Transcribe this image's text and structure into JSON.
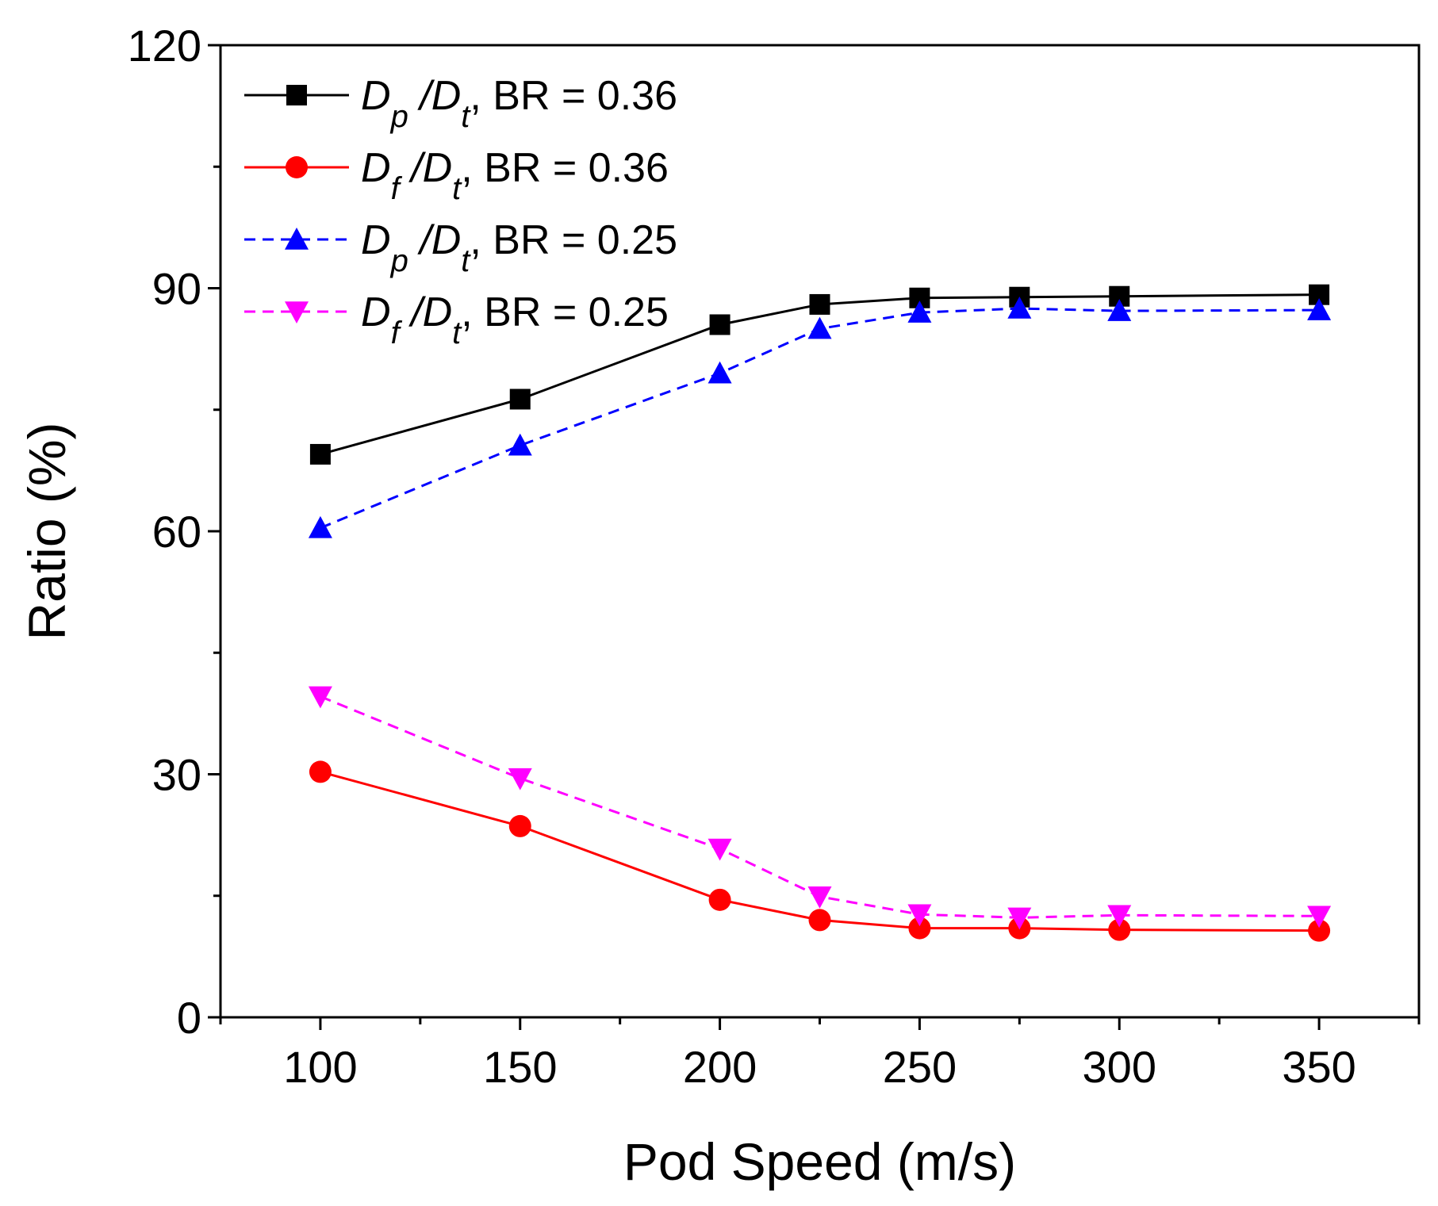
{
  "chart_data": {
    "type": "line",
    "xlabel": "Pod Speed (m/s)",
    "ylabel": "Ratio (%)",
    "xlim": [
      75,
      375
    ],
    "ylim": [
      0,
      120
    ],
    "x_ticks": [
      100,
      150,
      200,
      250,
      300,
      350
    ],
    "y_ticks": [
      0,
      30,
      60,
      90,
      120
    ],
    "x": [
      100,
      150,
      200,
      225,
      250,
      275,
      300,
      350
    ],
    "grid": false,
    "legend_position": "top-left",
    "series": [
      {
        "name": "Dp /Dt, BR = 0.36",
        "label_parts": [
          "D",
          "p",
          " /D",
          "t",
          ", BR = 0.36"
        ],
        "values": [
          69.5,
          76.3,
          85.5,
          88.0,
          88.8,
          88.9,
          89.0,
          89.2
        ],
        "color": "#000000",
        "marker": "square",
        "dash": "solid"
      },
      {
        "name": "Df /Dt, BR = 0.36",
        "label_parts": [
          "D",
          "f",
          " /D",
          "t",
          ", BR = 0.36"
        ],
        "values": [
          30.3,
          23.6,
          14.5,
          12.0,
          11.0,
          11.0,
          10.8,
          10.7
        ],
        "color": "#ff0000",
        "marker": "circle",
        "dash": "solid"
      },
      {
        "name": "Dp /Dt, BR = 0.25",
        "label_parts": [
          "D",
          "p",
          " /D",
          "t",
          ", BR = 0.25"
        ],
        "values": [
          60.4,
          70.6,
          79.5,
          85.0,
          87.0,
          87.5,
          87.2,
          87.3
        ],
        "color": "#0000ff",
        "marker": "triangle-up",
        "dash": "dashed"
      },
      {
        "name": "Df /Dt, BR = 0.25",
        "label_parts": [
          "D",
          "f",
          " /D",
          "t",
          ", BR = 0.25"
        ],
        "values": [
          39.6,
          29.5,
          20.8,
          14.9,
          12.7,
          12.3,
          12.6,
          12.5
        ],
        "color": "#ff00ff",
        "marker": "triangle-down",
        "dash": "dashed"
      }
    ]
  }
}
